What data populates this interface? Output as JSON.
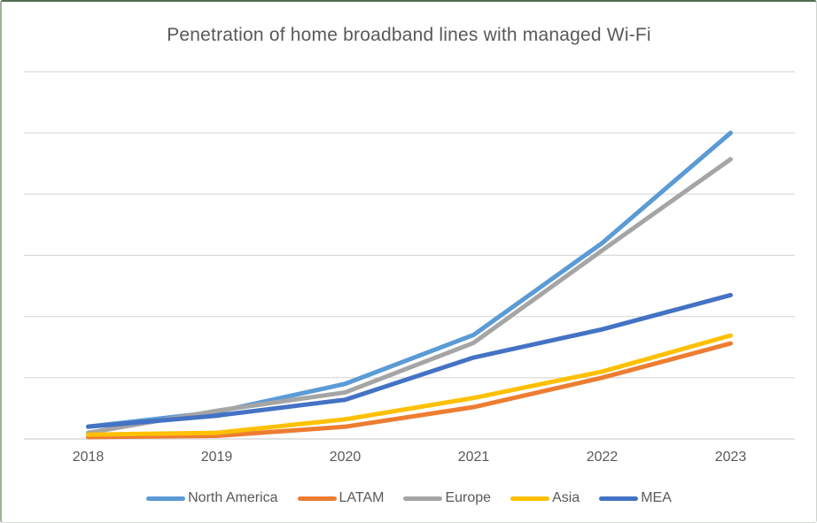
{
  "chart_data": {
    "type": "line",
    "title": "Penetration of home broadband lines with managed Wi-Fi",
    "xlabel": "",
    "ylabel": "",
    "categories": [
      "2018",
      "2019",
      "2020",
      "2021",
      "2022",
      "2023"
    ],
    "series": [
      {
        "name": "North America",
        "color": "#5B9BD5",
        "values": [
          2,
          4.4,
          9,
          17,
          32,
          50
        ]
      },
      {
        "name": "LATAM",
        "color": "#ED7D31",
        "values": [
          0.3,
          0.5,
          2,
          5.2,
          10,
          15.6
        ]
      },
      {
        "name": "Europe",
        "color": "#A5A5A5",
        "values": [
          1,
          4.6,
          7.6,
          15.7,
          30.8,
          45.7
        ]
      },
      {
        "name": "Asia",
        "color": "#FFC000",
        "values": [
          0.7,
          1,
          3.2,
          6.7,
          11,
          16.9
        ]
      },
      {
        "name": "MEA",
        "color": "#4472C4",
        "values": [
          2,
          3.8,
          6.4,
          13.3,
          17.9,
          23.5
        ]
      }
    ],
    "ylim": [
      0,
      60
    ],
    "y_gridline_step": 10,
    "y_axis_labels_visible": false,
    "grid": true,
    "legend_position": "bottom"
  },
  "styles": {
    "title_color": "#595959",
    "axis_text_color": "#595959",
    "gridline_color": "#D9D9D9",
    "axis_line_color": "#D9D9D9",
    "frame_border_color": "#4e6e51",
    "background": "#FFFFFF"
  }
}
